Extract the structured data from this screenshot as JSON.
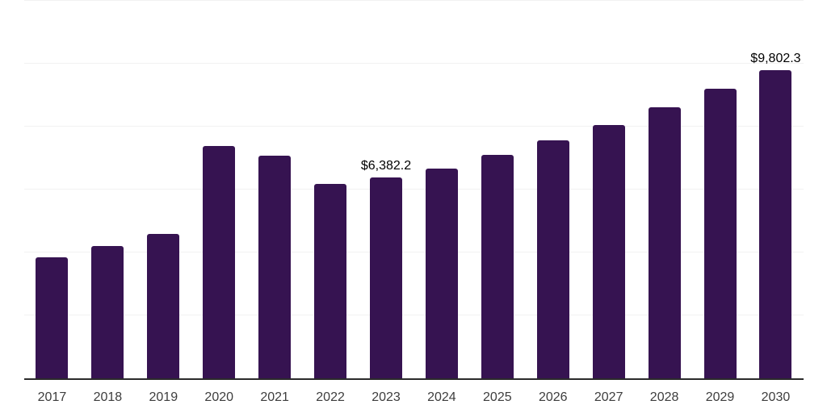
{
  "chart_data": {
    "type": "bar",
    "title": "",
    "xlabel": "",
    "ylabel": "",
    "categories": [
      "2017",
      "2018",
      "2019",
      "2020",
      "2021",
      "2022",
      "2023",
      "2024",
      "2025",
      "2026",
      "2027",
      "2028",
      "2029",
      "2030"
    ],
    "values": [
      3845,
      4205,
      4590,
      7385,
      7075,
      6180,
      6382.2,
      6665,
      7100,
      7565,
      8050,
      8615,
      9205,
      9802.3
    ],
    "point_labels": [
      {
        "index": 6,
        "text": "$6,382.2"
      },
      {
        "index": 13,
        "text": "$9,802.3"
      }
    ],
    "ylim": [
      0,
      12000
    ],
    "ytick_step": 2000,
    "y_tick_labels_visible": false,
    "grid": "horizontal",
    "legend": "none"
  },
  "colors": {
    "bar": "#361351",
    "gridline": "#f2f2f2",
    "axis_line": "#2b2b2b",
    "tick_label": "#3d3d3d",
    "value_label": "#000000",
    "background": "#ffffff"
  }
}
